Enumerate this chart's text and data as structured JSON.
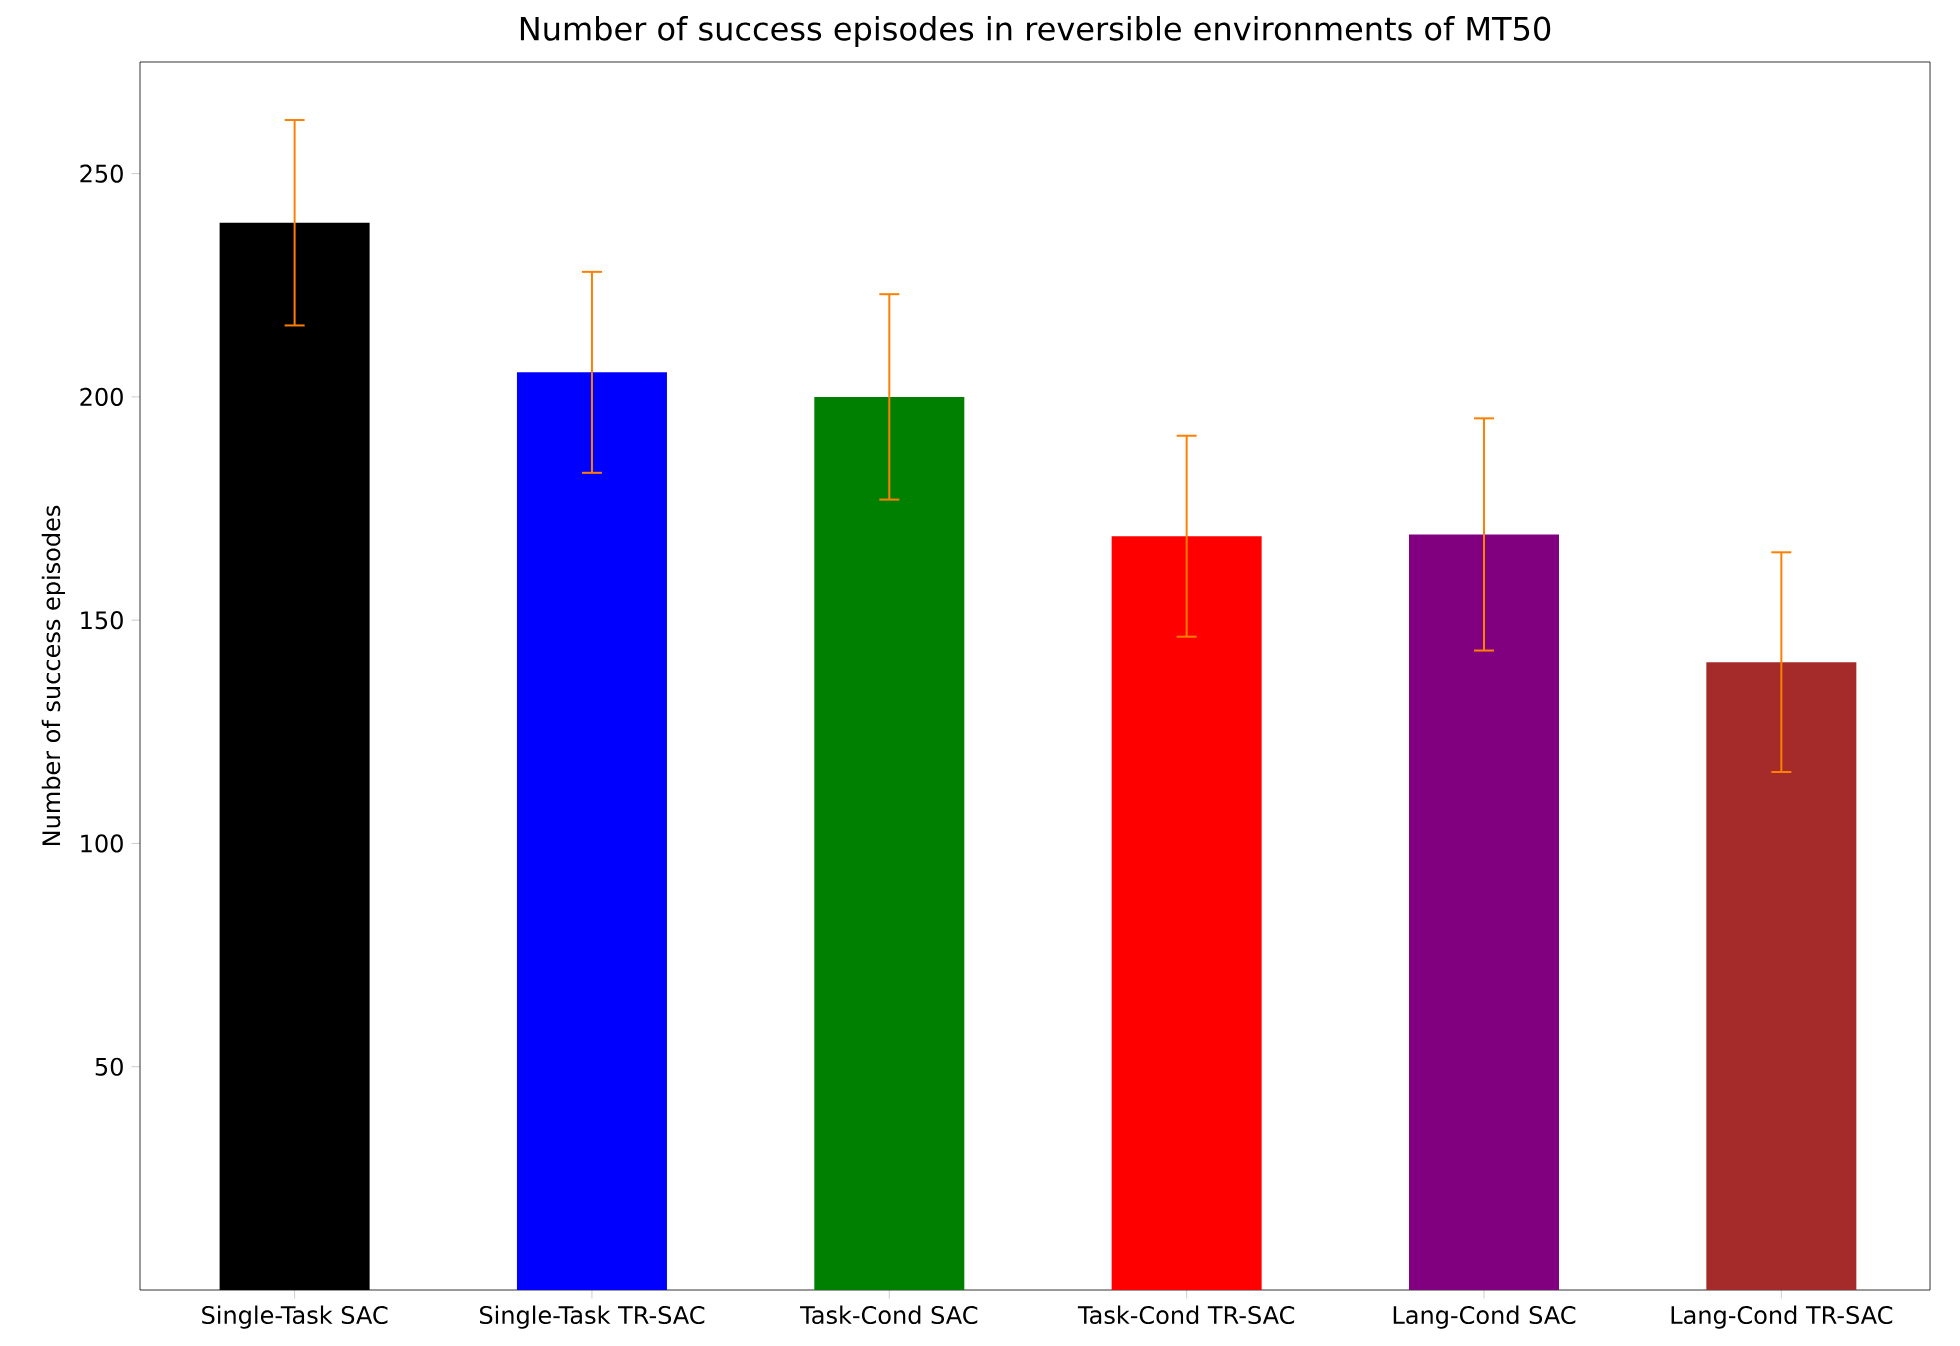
{
  "chart_data": {
    "type": "bar",
    "title": "Number of success episodes in reversible environments of MT50",
    "ylabel": "Number of success episodes",
    "categories": [
      "Single-Task SAC",
      "Single-Task TR-SAC",
      "Task-Cond SAC",
      "Task-Cond TR-SAC",
      "Lang-Cond SAC",
      "Lang-Cond TR-SAC"
    ],
    "values": [
      239,
      205.5,
      200,
      168.8,
      169.2,
      140.6
    ],
    "errors": [
      23,
      22.5,
      23,
      22.5,
      26,
      24.6
    ],
    "colors": [
      "#000000",
      "#0000ff",
      "#008000",
      "#ff0000",
      "#800080",
      "#a52a2a"
    ],
    "ylim": [
      0,
      275
    ],
    "yticks": [
      50,
      100,
      150,
      200,
      250
    ],
    "grid": false
  }
}
